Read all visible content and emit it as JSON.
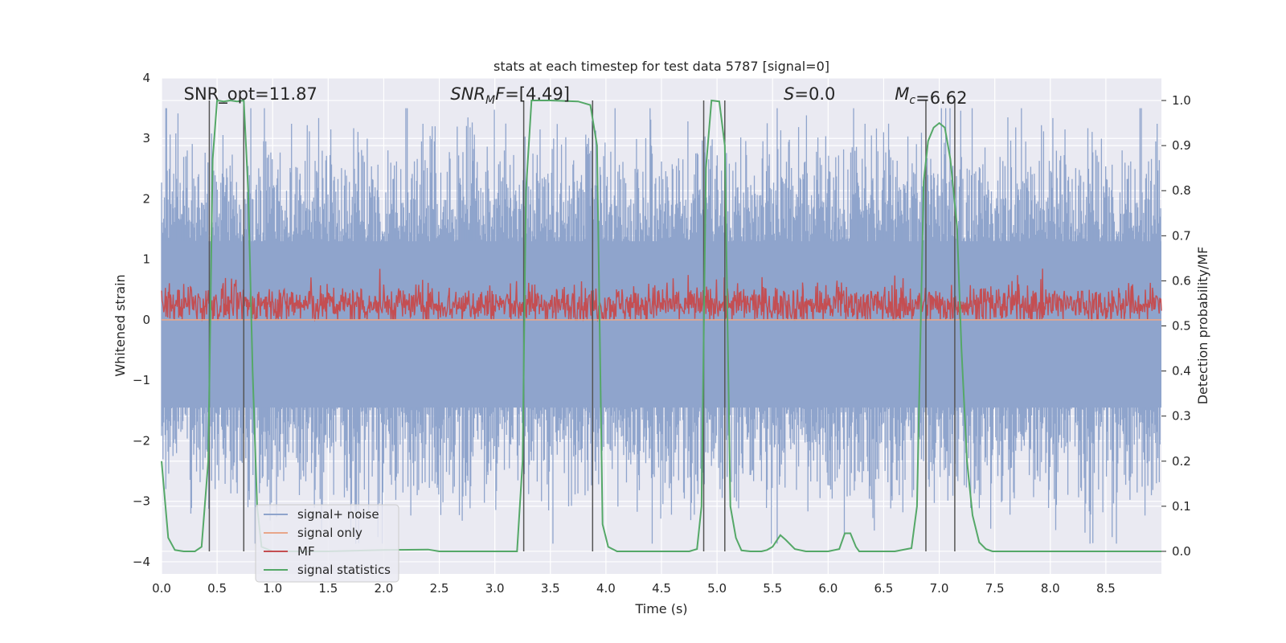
{
  "chart_data": {
    "type": "line",
    "title": "stats at each timestep for test data 5787 [signal=0]",
    "xlabel": "Time (s)",
    "ylabel": "Whitened strain",
    "y2label": "Detection probability/MF",
    "xlim": [
      0,
      9.0
    ],
    "ylim": [
      -4.2,
      4.0
    ],
    "y2lim": [
      -0.05,
      1.05
    ],
    "xticks": [
      "0.0",
      "0.5",
      "1.0",
      "1.5",
      "2.0",
      "2.5",
      "3.0",
      "3.5",
      "4.0",
      "4.5",
      "5.0",
      "5.5",
      "6.0",
      "6.5",
      "7.0",
      "7.5",
      "8.0",
      "8.5"
    ],
    "yticks": [
      "4",
      "3",
      "2",
      "1",
      "0",
      "−1",
      "−2",
      "−3",
      "−4"
    ],
    "y2ticks": [
      "1.0",
      "0.9",
      "0.8",
      "0.7",
      "0.6",
      "0.5",
      "0.4",
      "0.3",
      "0.2",
      "0.1",
      "0.0"
    ],
    "annotations": [
      {
        "text": "SNR_opt=11.87",
        "x": 0.2
      },
      {
        "text": "SNR_MF=[4.49]",
        "x": 2.6
      },
      {
        "text": "S=0.0",
        "x": 5.6
      },
      {
        "text": "M_c=6.62",
        "x": 6.6
      }
    ],
    "legend": {
      "location": "lower-left",
      "entries": [
        "signal+ noise",
        "signal only",
        "MF",
        "signal statistics"
      ]
    },
    "series": [
      {
        "name": "signal+ noise",
        "color": "#8fa4cc",
        "style": "noise",
        "amplitude_envelope": [
          -3.7,
          3.5
        ]
      },
      {
        "name": "signal only",
        "color": "#e8a68a",
        "style": "flat",
        "value": 0.0
      },
      {
        "name": "MF",
        "color": "#c44e52",
        "style": "noise",
        "amplitude_envelope": [
          0.0,
          1.0
        ]
      },
      {
        "name": "signal statistics",
        "color": "#55a868",
        "axis": "right",
        "x": [
          0.0,
          0.06,
          0.12,
          0.2,
          0.3,
          0.36,
          0.42,
          0.46,
          0.5,
          0.56,
          0.62,
          0.68,
          0.74,
          0.78,
          0.82,
          0.86,
          0.9,
          1.0,
          1.5,
          2.0,
          2.4,
          2.5,
          3.0,
          3.2,
          3.25,
          3.28,
          3.33,
          3.5,
          3.75,
          3.86,
          3.92,
          3.97,
          4.02,
          4.1,
          4.5,
          4.75,
          4.82,
          4.86,
          4.9,
          4.95,
          5.02,
          5.07,
          5.12,
          5.17,
          5.22,
          5.3,
          5.4,
          5.45,
          5.5,
          5.57,
          5.62,
          5.7,
          5.8,
          5.9,
          6.0,
          6.1,
          6.15,
          6.2,
          6.25,
          6.28,
          6.32,
          6.4,
          6.6,
          6.75,
          6.8,
          6.86,
          6.9,
          6.95,
          7.0,
          7.05,
          7.1,
          7.16,
          7.2,
          7.25,
          7.3,
          7.36,
          7.42,
          7.48,
          7.55,
          7.65,
          8.0,
          8.5,
          9.0
        ],
        "values": [
          0.2,
          0.03,
          0.003,
          0.0,
          0.0,
          0.01,
          0.2,
          0.87,
          1.0,
          0.998,
          1.0,
          0.998,
          1.0,
          0.8,
          0.4,
          0.1,
          0.01,
          0.0,
          0.0,
          0.003,
          0.004,
          0.0,
          0.0,
          0.0,
          0.2,
          0.8,
          1.0,
          1.0,
          0.998,
          0.99,
          0.9,
          0.06,
          0.01,
          0.0,
          0.0,
          0.0,
          0.005,
          0.1,
          0.85,
          1.0,
          0.998,
          0.9,
          0.1,
          0.03,
          0.002,
          0.0,
          0.0,
          0.003,
          0.01,
          0.036,
          0.025,
          0.005,
          0.0,
          0.0,
          0.0,
          0.005,
          0.04,
          0.04,
          0.01,
          0.0,
          0.0,
          0.0,
          0.0,
          0.007,
          0.1,
          0.82,
          0.91,
          0.94,
          0.95,
          0.94,
          0.87,
          0.72,
          0.45,
          0.2,
          0.08,
          0.02,
          0.005,
          0.0,
          0.0,
          0.0,
          0.0,
          0.0,
          0.0
        ]
      }
    ],
    "detection_windows": [
      [
        0.43,
        0.74
      ],
      [
        3.26,
        3.88
      ],
      [
        4.88,
        5.07
      ],
      [
        6.88,
        7.14
      ]
    ]
  }
}
